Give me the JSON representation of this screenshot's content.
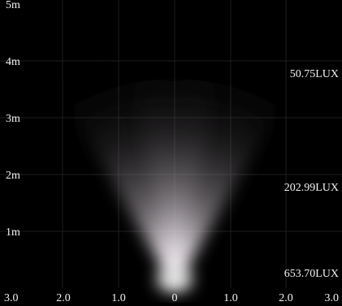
{
  "y_labels": [
    "5m",
    "4m",
    "3m",
    "2m",
    "1m"
  ],
  "x_labels": [
    "3.0",
    "2.0",
    "1.0",
    "0",
    "1.0",
    "2.0",
    "3.0"
  ],
  "lux_labels": [
    "50.75LUX",
    "202.99LUX",
    "653.70LUX"
  ]
}
